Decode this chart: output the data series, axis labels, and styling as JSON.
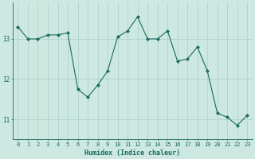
{
  "x": [
    0,
    1,
    2,
    3,
    4,
    5,
    6,
    7,
    8,
    9,
    10,
    11,
    12,
    13,
    14,
    15,
    16,
    17,
    18,
    19,
    20,
    21,
    22,
    23
  ],
  "y": [
    13.3,
    13.0,
    13.0,
    13.1,
    13.1,
    13.15,
    11.75,
    11.55,
    11.85,
    12.2,
    13.05,
    13.2,
    13.55,
    13.0,
    13.0,
    13.2,
    12.45,
    12.5,
    12.8,
    12.2,
    11.15,
    11.05,
    10.85,
    11.1
  ],
  "line_color": "#1a6b5e",
  "marker": "D",
  "marker_size": 2,
  "bg_color": "#cce8e0",
  "grid_color": "#b0d4ca",
  "axis_color": "#1a6b5e",
  "xlabel": "Humidex (Indice chaleur)",
  "xlabel_fontsize": 6,
  "tick_fontsize": 5,
  "yticks": [
    11,
    12,
    13
  ],
  "ylim": [
    10.5,
    13.9
  ],
  "xlim": [
    -0.5,
    23.5
  ]
}
